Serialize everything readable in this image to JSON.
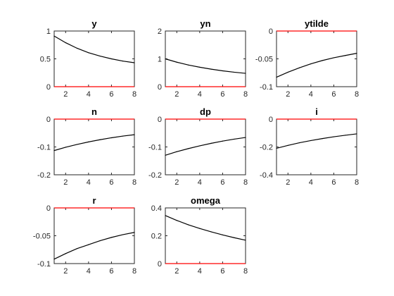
{
  "figure": {
    "background": "#ffffff",
    "axes_color": "#262626",
    "line_color": "#000000",
    "zero_color": "#ff0000"
  },
  "chart_data": [
    {
      "type": "line",
      "title": "y",
      "x": [
        1,
        2,
        3,
        4,
        5,
        6,
        7,
        8
      ],
      "y": [
        0.91,
        0.79,
        0.69,
        0.61,
        0.55,
        0.5,
        0.46,
        0.43
      ],
      "zero": [
        0,
        0,
        0,
        0,
        0,
        0,
        0,
        0
      ],
      "xlim": [
        1,
        8
      ],
      "ylim": [
        0,
        1
      ],
      "xticks": [
        2,
        4,
        6,
        8
      ],
      "xtick_labels": [
        "2",
        "4",
        "6",
        "8"
      ],
      "yticks": [
        1,
        0.5,
        0
      ],
      "ytick_labels": [
        "1",
        "0.5",
        "0"
      ]
    },
    {
      "type": "line",
      "title": "yn",
      "x": [
        1,
        2,
        3,
        4,
        5,
        6,
        7,
        8
      ],
      "y": [
        1.0,
        0.88,
        0.78,
        0.7,
        0.63,
        0.57,
        0.52,
        0.48
      ],
      "zero": [
        0,
        0,
        0,
        0,
        0,
        0,
        0,
        0
      ],
      "xlim": [
        1,
        8
      ],
      "ylim": [
        0,
        2
      ],
      "xticks": [
        2,
        4,
        6,
        8
      ],
      "xtick_labels": [
        "2",
        "4",
        "6",
        "8"
      ],
      "yticks": [
        2,
        1,
        0
      ],
      "ytick_labels": [
        "2",
        "1",
        "0"
      ]
    },
    {
      "type": "line",
      "title": "ytilde",
      "x": [
        1,
        2,
        3,
        4,
        5,
        6,
        7,
        8
      ],
      "y": [
        -0.083,
        -0.074,
        -0.066,
        -0.059,
        -0.053,
        -0.048,
        -0.044,
        -0.04
      ],
      "zero": [
        0,
        0,
        0,
        0,
        0,
        0,
        0,
        0
      ],
      "xlim": [
        1,
        8
      ],
      "ylim": [
        -0.1,
        0
      ],
      "xticks": [
        2,
        4,
        6,
        8
      ],
      "xtick_labels": [
        "2",
        "4",
        "6",
        "8"
      ],
      "yticks": [
        0,
        -0.05,
        -0.1
      ],
      "ytick_labels": [
        "0",
        "-0.05",
        "-0.1"
      ]
    },
    {
      "type": "line",
      "title": "n",
      "x": [
        1,
        2,
        3,
        4,
        5,
        6,
        7,
        8
      ],
      "y": [
        -0.113,
        -0.101,
        -0.091,
        -0.082,
        -0.074,
        -0.067,
        -0.061,
        -0.056
      ],
      "zero": [
        0,
        0,
        0,
        0,
        0,
        0,
        0,
        0
      ],
      "xlim": [
        1,
        8
      ],
      "ylim": [
        -0.2,
        0
      ],
      "xticks": [
        2,
        4,
        6,
        8
      ],
      "xtick_labels": [
        "2",
        "4",
        "6",
        "8"
      ],
      "yticks": [
        0,
        -0.1,
        -0.2
      ],
      "ytick_labels": [
        "0",
        "-0.1",
        "-0.2"
      ]
    },
    {
      "type": "line",
      "title": "dp",
      "x": [
        1,
        2,
        3,
        4,
        5,
        6,
        7,
        8
      ],
      "y": [
        -0.13,
        -0.117,
        -0.106,
        -0.096,
        -0.087,
        -0.079,
        -0.072,
        -0.066
      ],
      "zero": [
        0,
        0,
        0,
        0,
        0,
        0,
        0,
        0
      ],
      "xlim": [
        1,
        8
      ],
      "ylim": [
        -0.2,
        0
      ],
      "xticks": [
        2,
        4,
        6,
        8
      ],
      "xtick_labels": [
        "2",
        "4",
        "6",
        "8"
      ],
      "yticks": [
        0,
        -0.1,
        -0.2
      ],
      "ytick_labels": [
        "0",
        "-0.1",
        "-0.2"
      ]
    },
    {
      "type": "line",
      "title": "i",
      "x": [
        1,
        2,
        3,
        4,
        5,
        6,
        7,
        8
      ],
      "y": [
        -0.21,
        -0.189,
        -0.17,
        -0.154,
        -0.14,
        -0.127,
        -0.116,
        -0.106
      ],
      "zero": [
        0,
        0,
        0,
        0,
        0,
        0,
        0,
        0
      ],
      "xlim": [
        1,
        8
      ],
      "ylim": [
        -0.4,
        0
      ],
      "xticks": [
        2,
        4,
        6,
        8
      ],
      "xtick_labels": [
        "2",
        "4",
        "6",
        "8"
      ],
      "yticks": [
        0,
        -0.2,
        -0.4
      ],
      "ytick_labels": [
        "0",
        "-0.2",
        "-0.4"
      ]
    },
    {
      "type": "line",
      "title": "r",
      "x": [
        1,
        2,
        3,
        4,
        5,
        6,
        7,
        8
      ],
      "y": [
        -0.092,
        -0.082,
        -0.073,
        -0.066,
        -0.059,
        -0.053,
        -0.048,
        -0.044
      ],
      "zero": [
        0,
        0,
        0,
        0,
        0,
        0,
        0,
        0
      ],
      "xlim": [
        1,
        8
      ],
      "ylim": [
        -0.1,
        0
      ],
      "xticks": [
        2,
        4,
        6,
        8
      ],
      "xtick_labels": [
        "2",
        "4",
        "6",
        "8"
      ],
      "yticks": [
        0,
        -0.05,
        -0.1
      ],
      "ytick_labels": [
        "0",
        "-0.05",
        "-0.1"
      ]
    },
    {
      "type": "line",
      "title": "omega",
      "x": [
        1,
        2,
        3,
        4,
        5,
        6,
        7,
        8
      ],
      "y": [
        0.345,
        0.31,
        0.279,
        0.252,
        0.228,
        0.206,
        0.186,
        0.168
      ],
      "zero": [
        0,
        0,
        0,
        0,
        0,
        0,
        0,
        0
      ],
      "xlim": [
        1,
        8
      ],
      "ylim": [
        0,
        0.4
      ],
      "xticks": [
        2,
        4,
        6,
        8
      ],
      "xtick_labels": [
        "2",
        "4",
        "6",
        "8"
      ],
      "yticks": [
        0.4,
        0.2,
        0
      ],
      "ytick_labels": [
        "0.4",
        "0.2",
        "0"
      ]
    }
  ]
}
